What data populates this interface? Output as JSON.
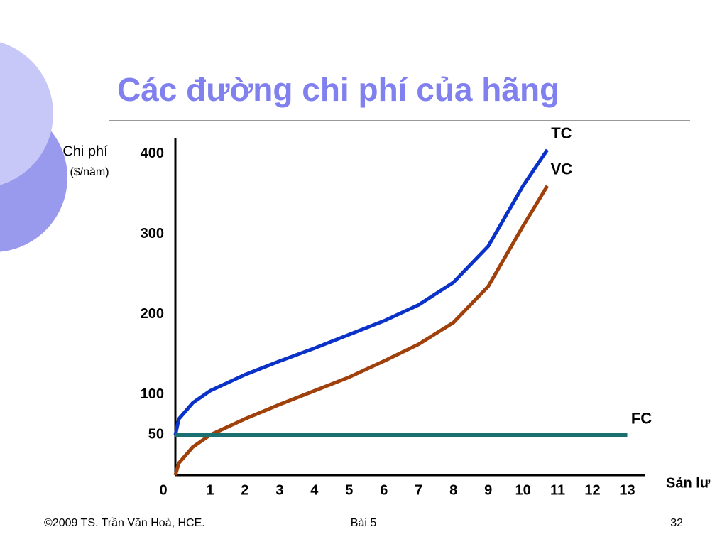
{
  "chart_data": {
    "type": "line",
    "title": "Các đường chi phí của hãng",
    "y_label": "Chi phí",
    "y_unit": "($/năm)",
    "x_label": "Sản lư",
    "xlim": [
      0,
      13.5
    ],
    "ylim": [
      0,
      420
    ],
    "xticks": [
      0,
      1,
      2,
      3,
      4,
      5,
      6,
      7,
      8,
      9,
      10,
      11,
      12,
      13
    ],
    "yticks": [
      50,
      100,
      200,
      300,
      400
    ],
    "series": [
      {
        "name": "TC",
        "color": "#0a32c8",
        "x": [
          0,
          0.1,
          0.5,
          1,
          2,
          3,
          4,
          5,
          6,
          7,
          8,
          9,
          10,
          10.7
        ],
        "values": [
          50,
          70,
          90,
          105,
          125,
          142,
          158,
          175,
          192,
          212,
          240,
          285,
          360,
          405
        ]
      },
      {
        "name": "VC",
        "color": "#a0400a",
        "x": [
          0,
          0.1,
          0.5,
          1,
          2,
          3,
          4,
          5,
          6,
          7,
          8,
          9,
          10,
          10.7
        ],
        "values": [
          0,
          15,
          35,
          50,
          70,
          88,
          105,
          122,
          142,
          163,
          190,
          235,
          310,
          360
        ]
      },
      {
        "name": "FC",
        "color": "#1a7070",
        "x": [
          0,
          13
        ],
        "values": [
          50,
          50
        ]
      }
    ]
  },
  "footer": {
    "left": "©2009 TS. Trần Văn Hoà, HCE.",
    "center": "Bài 5",
    "right": "32"
  }
}
